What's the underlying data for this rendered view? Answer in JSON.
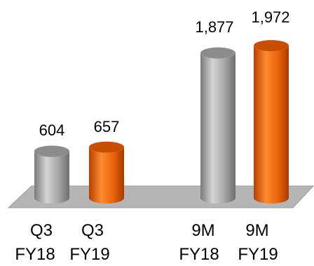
{
  "chart_data": {
    "type": "bar",
    "style": "3d-cylinder",
    "categories": [
      {
        "line1": "Q3",
        "line2": "FY18"
      },
      {
        "line1": "Q3",
        "line2": "FY19"
      },
      {
        "line1": "9M",
        "line2": "FY18"
      },
      {
        "line1": "9M",
        "line2": "FY19"
      }
    ],
    "values": [
      604,
      657,
      1877,
      1972
    ],
    "value_labels": [
      "604",
      "657",
      "1,877",
      "1,972"
    ],
    "bar_colors": [
      "#9e9e9e",
      "#e8600a",
      "#9e9e9e",
      "#e8600a"
    ],
    "floor_color": "#b5b5b5",
    "grid": false,
    "legend": "none"
  }
}
